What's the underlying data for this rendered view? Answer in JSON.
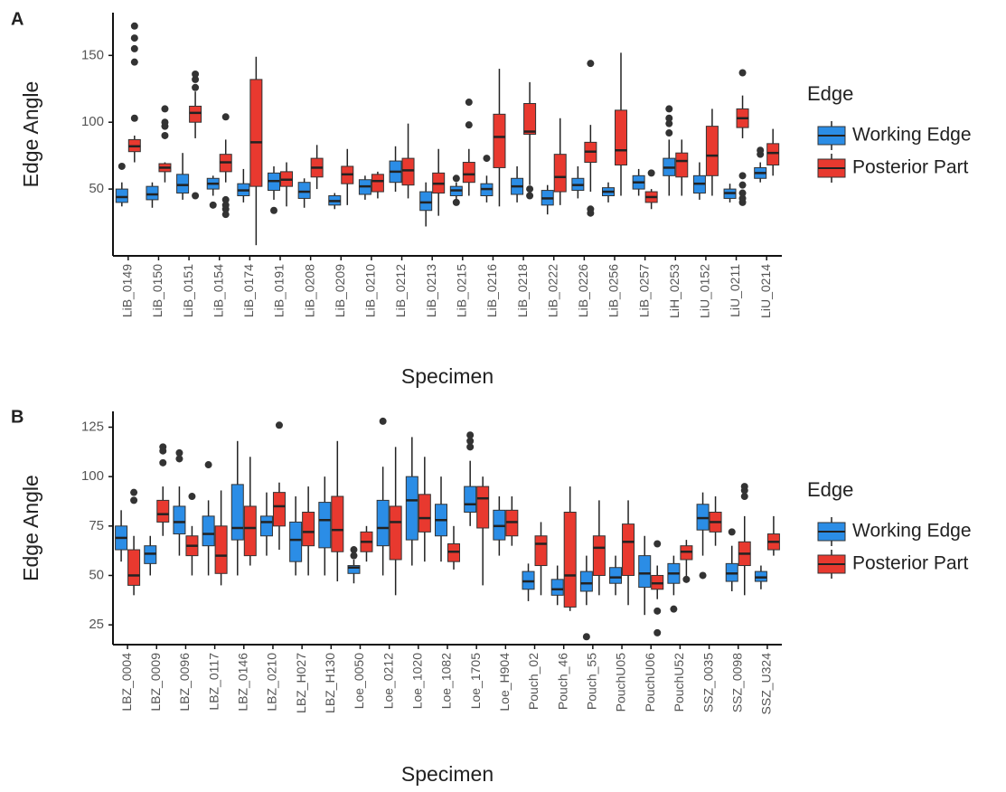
{
  "chart_data": [
    {
      "type": "box",
      "panel_label": "A",
      "xlabel": "Specimen",
      "ylabel": "Edge Angle",
      "legend_title": "Edge",
      "ylim": [
        0,
        182
      ],
      "yticks": [
        50,
        100,
        150
      ],
      "categories": [
        "LiB_0149",
        "LiB_0150",
        "LiB_0151",
        "LiB_0154",
        "LiB_0174",
        "LiB_0191",
        "LiB_0208",
        "LiB_0209",
        "LiB_0210",
        "LiB_0212",
        "LiB_0213",
        "LiB_0215",
        "LiB_0216",
        "LiB_0218",
        "LiB_0222",
        "LiB_0226",
        "LiB_0256",
        "LiB_0257",
        "LiH_0253",
        "LiU_0152",
        "LiU_0211",
        "LiU_0214"
      ],
      "series": [
        {
          "name": "Working Edge",
          "color": "#2b8de6",
          "values": [
            [
              37,
              40,
              44,
              50,
              55
            ],
            [
              36,
              42,
              46,
              52,
              55
            ],
            [
              42,
              47,
              53,
              61,
              77
            ],
            [
              45,
              50,
              54,
              58,
              60
            ],
            [
              40,
              45,
              49,
              54,
              65
            ],
            [
              42,
              49,
              56,
              62,
              67
            ],
            [
              36,
              43,
              48,
              55,
              58
            ],
            [
              35,
              38,
              41,
              45,
              47
            ],
            [
              42,
              46,
              52,
              57,
              60
            ],
            [
              48,
              55,
              63,
              71,
              82
            ],
            [
              22,
              34,
              40,
              48,
              55
            ],
            [
              42,
              45,
              49,
              52,
              55
            ],
            [
              40,
              45,
              50,
              54,
              60
            ],
            [
              40,
              46,
              52,
              58,
              67
            ],
            [
              31,
              38,
              43,
              49,
              53
            ],
            [
              43,
              49,
              53,
              58,
              67
            ],
            [
              40,
              45,
              48,
              51,
              55
            ],
            [
              45,
              50,
              55,
              60,
              65
            ],
            [
              45,
              60,
              66,
              73,
              87
            ],
            [
              42,
              47,
              54,
              60,
              70
            ],
            [
              40,
              43,
              47,
              50,
              54
            ],
            [
              55,
              58,
              62,
              66,
              70
            ]
          ],
          "outliers": [
            [
              67
            ],
            [],
            [],
            [
              38
            ],
            [],
            [
              34
            ],
            [],
            [],
            [],
            [],
            [],
            [
              40,
              58
            ],
            [
              73
            ],
            [],
            [],
            [],
            [],
            [],
            [
              92,
              99,
              103,
              110
            ],
            [],
            [],
            [
              76,
              79
            ]
          ]
        },
        {
          "name": "Posterior Part",
          "color": "#e8392f",
          "values": [
            [
              70,
              78,
              82,
              87,
              90
            ],
            [
              55,
              63,
              66,
              69,
              70
            ],
            [
              88,
              100,
              107,
              112,
              123
            ],
            [
              55,
              63,
              70,
              76,
              87
            ],
            [
              8,
              52,
              85,
              132,
              149
            ],
            [
              37,
              52,
              57,
              63,
              70
            ],
            [
              50,
              59,
              66,
              73,
              83
            ],
            [
              38,
              54,
              61,
              67,
              80
            ],
            [
              43,
              48,
              56,
              61,
              63
            ],
            [
              43,
              53,
              64,
              73,
              99
            ],
            [
              30,
              47,
              54,
              62,
              80
            ],
            [
              45,
              55,
              61,
              70,
              80
            ],
            [
              37,
              66,
              89,
              106,
              140
            ],
            [
              53,
              91,
              93,
              114,
              130
            ],
            [
              38,
              48,
              59,
              76,
              103
            ],
            [
              48,
              70,
              78,
              85,
              98
            ],
            [
              45,
              68,
              79,
              109,
              152
            ],
            [
              35,
              40,
              44,
              48,
              50
            ],
            [
              45,
              59,
              71,
              77,
              87
            ],
            [
              45,
              60,
              75,
              97,
              110
            ],
            [
              88,
              96,
              103,
              110,
              120
            ],
            [
              60,
              68,
              77,
              84,
              95
            ]
          ],
          "outliers": [
            [
              103,
              145,
              155,
              163,
              172
            ],
            [
              90,
              97,
              100,
              110
            ],
            [
              45,
              126,
              132,
              136
            ],
            [
              31,
              35,
              38,
              42,
              104
            ],
            [],
            [],
            [],
            [],
            [],
            [],
            [],
            [
              98,
              115
            ],
            [],
            [
              45,
              50
            ],
            [],
            [
              32,
              35,
              144
            ],
            [],
            [
              62
            ],
            [],
            [],
            [
              40,
              43,
              47,
              53,
              60,
              137
            ],
            []
          ]
        }
      ]
    },
    {
      "type": "box",
      "panel_label": "B",
      "xlabel": "Specimen",
      "ylabel": "Edge Angle",
      "legend_title": "Edge",
      "ylim": [
        15,
        133
      ],
      "yticks": [
        25,
        50,
        75,
        100,
        125
      ],
      "categories": [
        "LBZ_0004",
        "LBZ_0009",
        "LBZ_0096",
        "LBZ_0117",
        "LBZ_0146",
        "LBZ_0210",
        "LBZ_H027",
        "LBZ_H130",
        "Loe_0050",
        "Loe_0212",
        "Loe_1020",
        "Loe_1082",
        "Loe_1705",
        "Loe_H904",
        "Pouch_02",
        "Pouch_46",
        "Pouch_55",
        "PouchU05",
        "PouchU06",
        "PouchU52",
        "SSZ_0035",
        "SSZ_0098",
        "SSZ_U324"
      ],
      "series": [
        {
          "name": "Working Edge",
          "color": "#2b8de6",
          "values": [
            [
              57,
              63,
              69,
              75,
              83
            ],
            [
              50,
              56,
              61,
              65,
              70
            ],
            [
              60,
              71,
              77,
              85,
              95
            ],
            [
              50,
              65,
              71,
              80,
              88
            ],
            [
              50,
              68,
              74,
              96,
              118
            ],
            [
              60,
              70,
              77,
              80,
              92
            ],
            [
              50,
              57,
              68,
              77,
              90
            ],
            [
              50,
              64,
              78,
              87,
              100
            ],
            [
              46,
              51,
              54,
              55,
              58
            ],
            [
              50,
              65,
              74,
              88,
              105
            ],
            [
              55,
              68,
              88,
              100,
              120
            ],
            [
              57,
              70,
              78,
              86,
              100
            ],
            [
              75,
              82,
              86,
              95,
              108
            ],
            [
              60,
              68,
              75,
              83,
              90
            ],
            [
              37,
              43,
              47,
              52,
              56
            ],
            [
              35,
              40,
              43,
              48,
              55
            ],
            [
              35,
              42,
              46,
              52,
              60
            ],
            [
              40,
              46,
              49,
              54,
              60
            ],
            [
              30,
              44,
              51,
              60,
              70
            ],
            [
              40,
              46,
              51,
              56,
              60
            ],
            [
              60,
              73,
              79,
              86,
              92
            ],
            [
              42,
              47,
              51,
              56,
              65
            ],
            [
              43,
              47,
              49,
              52,
              55
            ]
          ],
          "outliers": [
            [],
            [],
            [
              109,
              112
            ],
            [
              106
            ],
            [],
            [],
            [],
            [],
            [
              60,
              63
            ],
            [
              128
            ],
            [],
            [],
            [
              115,
              118,
              121
            ],
            [],
            [],
            [],
            [
              19
            ],
            [],
            [],
            [
              33
            ],
            [
              50
            ],
            [
              72
            ],
            []
          ]
        },
        {
          "name": "Posterior Part",
          "color": "#e8392f",
          "values": [
            [
              40,
              45,
              50,
              63,
              70
            ],
            [
              70,
              77,
              81,
              88,
              95
            ],
            [
              50,
              60,
              65,
              70,
              75
            ],
            [
              45,
              51,
              60,
              75,
              93
            ],
            [
              55,
              60,
              74,
              85,
              110
            ],
            [
              63,
              75,
              85,
              92,
              97
            ],
            [
              50,
              65,
              72,
              82,
              95
            ],
            [
              47,
              62,
              73,
              90,
              118
            ],
            [
              57,
              62,
              67,
              72,
              75
            ],
            [
              40,
              58,
              77,
              85,
              115
            ],
            [
              57,
              72,
              79,
              91,
              110
            ],
            [
              53,
              57,
              62,
              66,
              75
            ],
            [
              45,
              74,
              89,
              95,
              100
            ],
            [
              65,
              70,
              77,
              83,
              90
            ],
            [
              40,
              55,
              66,
              70,
              77
            ],
            [
              32,
              34,
              50,
              82,
              95
            ],
            [
              40,
              50,
              64,
              70,
              88
            ],
            [
              35,
              50,
              67,
              76,
              88
            ],
            [
              38,
              43,
              46,
              50,
              55
            ],
            [
              47,
              58,
              62,
              65,
              68
            ],
            [
              65,
              72,
              77,
              82,
              90
            ],
            [
              40,
              55,
              61,
              67,
              80
            ],
            [
              60,
              63,
              67,
              71,
              80
            ]
          ],
          "outliers": [
            [
              88,
              92
            ],
            [
              107,
              113,
              115
            ],
            [
              90
            ],
            [],
            [],
            [
              126
            ],
            [],
            [],
            [],
            [],
            [],
            [],
            [],
            [],
            [],
            [],
            [],
            [],
            [
              21,
              32,
              66
            ],
            [
              48
            ],
            [],
            [
              90,
              93,
              95
            ],
            []
          ]
        }
      ]
    }
  ]
}
